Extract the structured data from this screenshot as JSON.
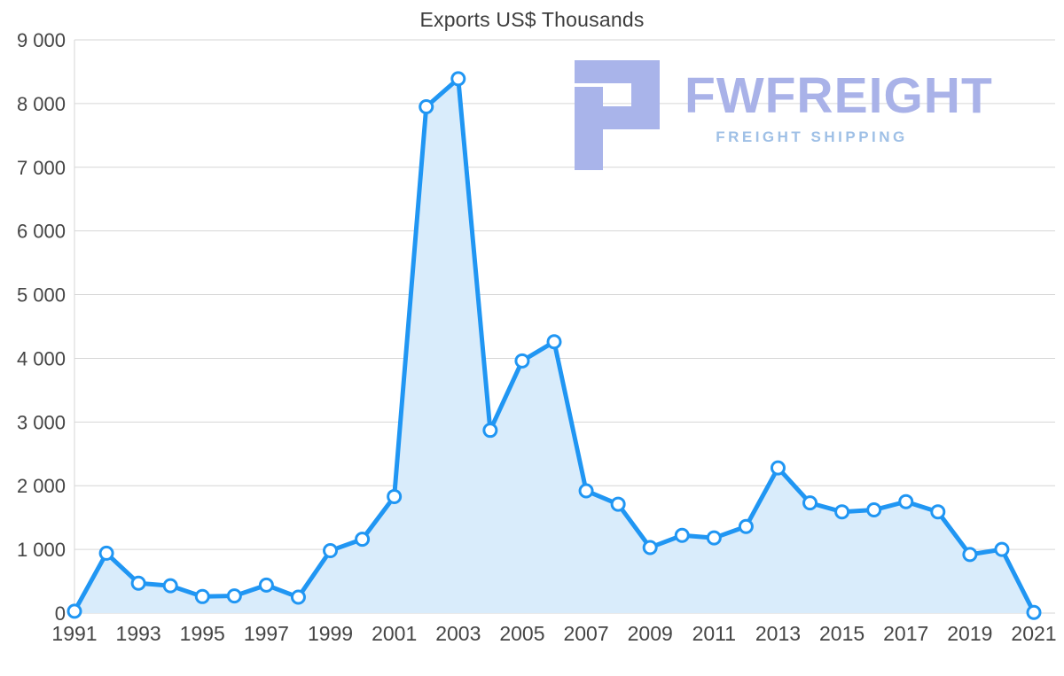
{
  "title": "Exports US$ Thousands",
  "watermark": {
    "brand": "FWFREIGHT",
    "tagline": "FREIGHT SHIPPING",
    "logo_color": "#a9b4ea",
    "brand_color": "#a9b2e8",
    "tagline_color": "#9fc0e6"
  },
  "chart_data": {
    "type": "area",
    "title": "Exports US$ Thousands",
    "xlabel": "",
    "ylabel": "",
    "x": [
      1991,
      1992,
      1993,
      1994,
      1995,
      1996,
      1997,
      1998,
      1999,
      2000,
      2001,
      2002,
      2003,
      2004,
      2005,
      2006,
      2007,
      2008,
      2009,
      2010,
      2011,
      2012,
      2013,
      2014,
      2015,
      2016,
      2017,
      2018,
      2019,
      2020,
      2021
    ],
    "values": [
      30,
      940,
      470,
      430,
      260,
      270,
      440,
      250,
      980,
      1160,
      1830,
      7950,
      8390,
      2870,
      3960,
      4260,
      1920,
      1710,
      1030,
      1220,
      1180,
      1360,
      2280,
      1730,
      1590,
      1620,
      1750,
      1590,
      920,
      1000,
      10
    ],
    "ylim": [
      0,
      9000
    ],
    "y_ticks": [
      0,
      1000,
      2000,
      3000,
      4000,
      5000,
      6000,
      7000,
      8000,
      9000
    ],
    "y_tick_labels": [
      "0",
      "1 000",
      "2 000",
      "3 000",
      "4 000",
      "5 000",
      "6 000",
      "7 000",
      "8 000",
      "9 000"
    ],
    "x_tick_labels": [
      "1991",
      "1993",
      "1995",
      "1997",
      "1999",
      "2001",
      "2003",
      "2005",
      "2007",
      "2009",
      "2011",
      "2013",
      "2015",
      "2017",
      "2019",
      "2021"
    ],
    "grid": true,
    "legend": "none",
    "line_color": "#2096f3",
    "fill_color": "#d9ecfb",
    "marker_fill": "#ffffff",
    "grid_color": "#d6d6d6",
    "axis_text_color": "#454545"
  }
}
